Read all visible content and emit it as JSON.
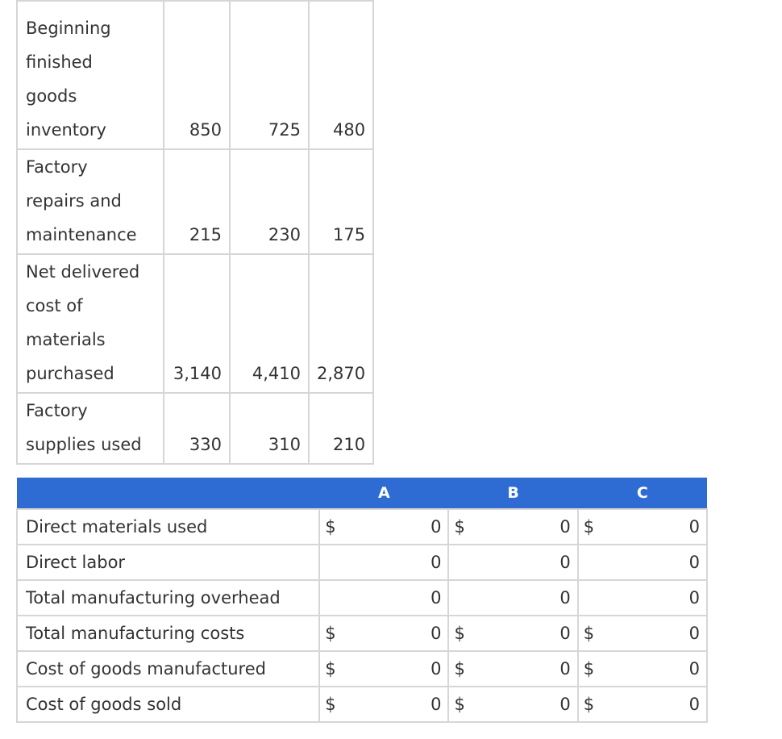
{
  "cost_table": {
    "rows": [
      {
        "label": [
          "Beginning",
          "finished",
          "goods",
          "inventory"
        ],
        "values": [
          "850",
          "725",
          "480"
        ]
      },
      {
        "label": [
          "Factory",
          "repairs and",
          "maintenance"
        ],
        "values": [
          "215",
          "230",
          "175"
        ]
      },
      {
        "label": [
          "Net delivered",
          "cost of",
          "materials",
          "purchased"
        ],
        "values": [
          "3,140",
          "4,410",
          "2,870"
        ]
      },
      {
        "label": [
          "Factory",
          "supplies used"
        ],
        "values": [
          "330",
          "310",
          "210"
        ]
      }
    ]
  },
  "answer_table": {
    "columns": [
      "",
      "A",
      "B",
      "C"
    ],
    "rows": [
      {
        "label": "Direct materials used",
        "dollar": [
          "$",
          "$",
          "$"
        ],
        "values": [
          "0",
          "0",
          "0"
        ]
      },
      {
        "label": "Direct labor",
        "dollar": [
          "",
          "",
          ""
        ],
        "values": [
          "0",
          "0",
          "0"
        ]
      },
      {
        "label": "Total manufacturing overhead",
        "dollar": [
          "",
          "",
          ""
        ],
        "values": [
          "0",
          "0",
          "0"
        ]
      },
      {
        "label": "Total manufacturing costs",
        "dollar": [
          "$",
          "$",
          "$"
        ],
        "values": [
          "0",
          "0",
          "0"
        ]
      },
      {
        "label": "Cost of goods manufactured",
        "dollar": [
          "$",
          "$",
          "$"
        ],
        "values": [
          "0",
          "0",
          "0"
        ]
      },
      {
        "label": "Cost of goods sold",
        "dollar": [
          "$",
          "$",
          "$"
        ],
        "values": [
          "0",
          "0",
          "0"
        ]
      }
    ]
  },
  "colors": {
    "header_bg": "#2e6bd3",
    "header_text": "#ffffff",
    "border": "#d6d6d6"
  }
}
